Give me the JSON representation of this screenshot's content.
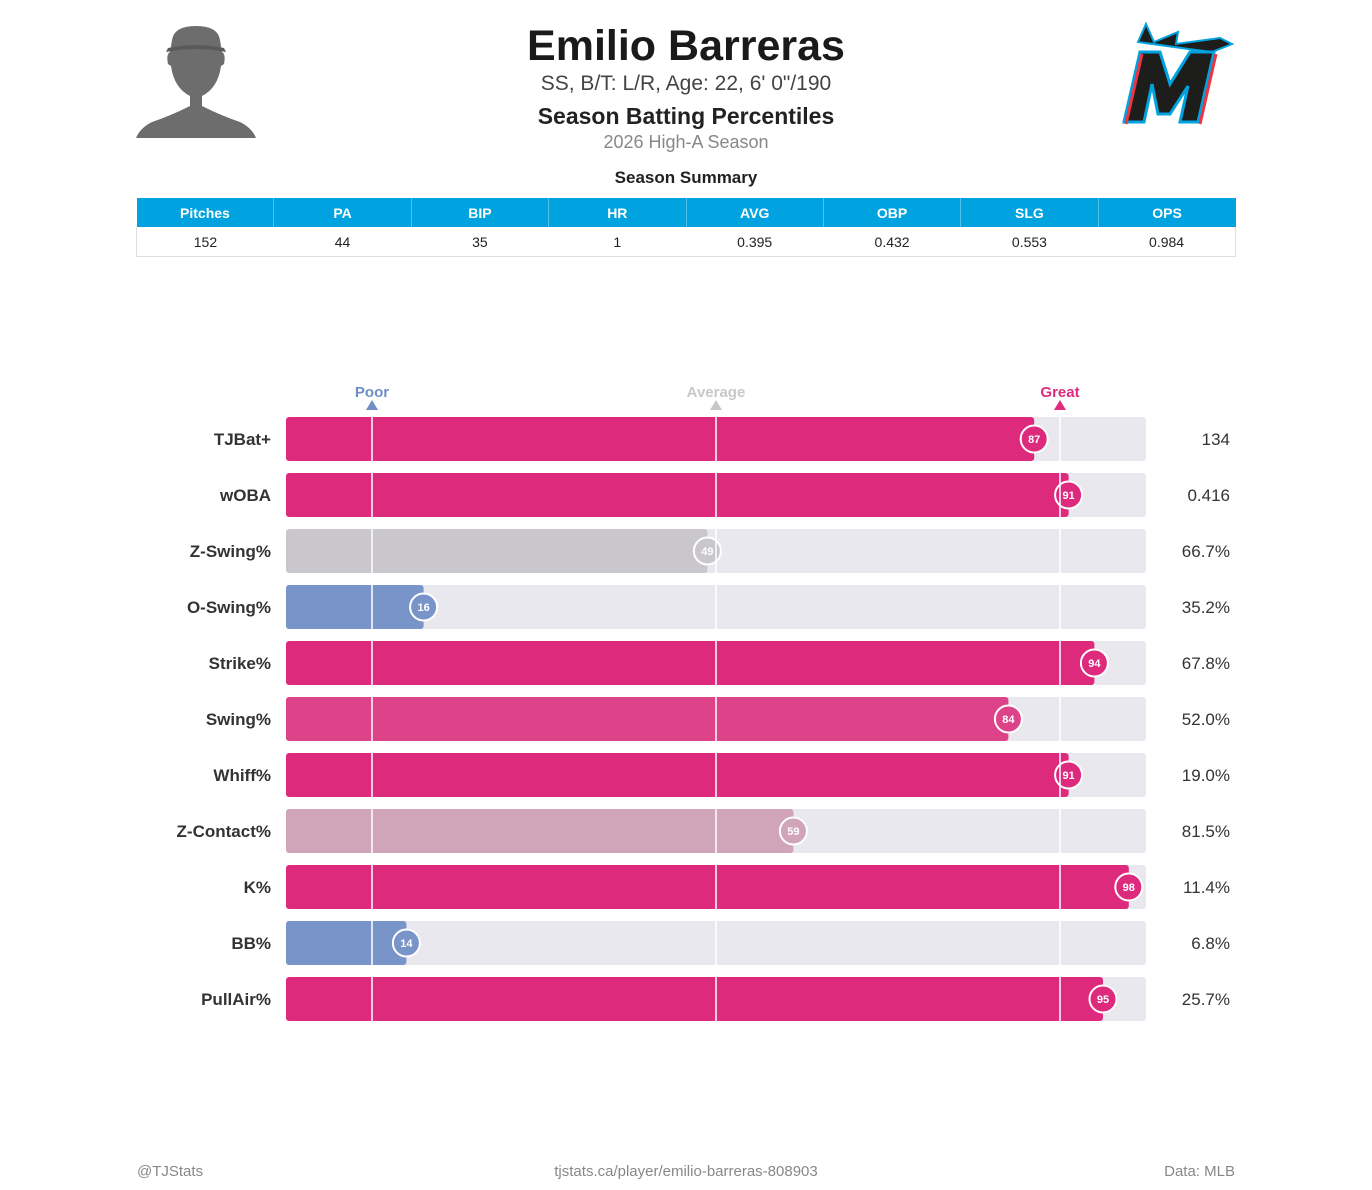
{
  "header": {
    "name": "Emilio Barreras",
    "info": "SS, B/T: L/R, Age: 22, 6' 0\"/190",
    "title": "Season Batting Percentiles",
    "subtitle": "2026 High-A Season",
    "headshot_icon": "player-silhouette-icon",
    "team_logo_icon": "marlins-logo-icon"
  },
  "summary": {
    "title": "Season Summary",
    "columns": [
      "Pitches",
      "PA",
      "BIP",
      "HR",
      "AVG",
      "OBP",
      "SLG",
      "OPS"
    ],
    "values": [
      "152",
      "44",
      "35",
      "1",
      "0.395",
      "0.432",
      "0.553",
      "0.984"
    ]
  },
  "chart_data": {
    "type": "bar",
    "orientation": "horizontal",
    "xlim": [
      0,
      100
    ],
    "markers": [
      {
        "label": "Poor",
        "value": 10,
        "color": "#6f8ec9"
      },
      {
        "label": "Average",
        "value": 50,
        "color": "#c8c8c8"
      },
      {
        "label": "Great",
        "value": 90,
        "color": "#de2b7f"
      }
    ],
    "categories": [
      "TJBat+",
      "wOBA",
      "Z-Swing%",
      "O-Swing%",
      "Strike%",
      "Swing%",
      "Whiff%",
      "Z-Contact%",
      "K%",
      "BB%",
      "PullAir%"
    ],
    "percentiles": [
      87,
      91,
      49,
      16,
      94,
      84,
      91,
      59,
      98,
      14,
      95
    ],
    "stat_values": [
      "134",
      "0.416",
      "66.7%",
      "35.2%",
      "67.8%",
      "52.0%",
      "19.0%",
      "81.5%",
      "11.4%",
      "6.8%",
      "25.7%"
    ],
    "colors": {
      "great": "#dd2a7d",
      "very_good": "#de3a84",
      "good": "#dc4388",
      "above_average": "#d0a4b9",
      "average": "#c9c7cc",
      "poor": "#7994c9",
      "track": "#e8e8ee"
    }
  },
  "footer": {
    "left": "@TJStats",
    "center": "tjstats.ca/player/emilio-barreras-808903",
    "right": "Data: MLB"
  }
}
